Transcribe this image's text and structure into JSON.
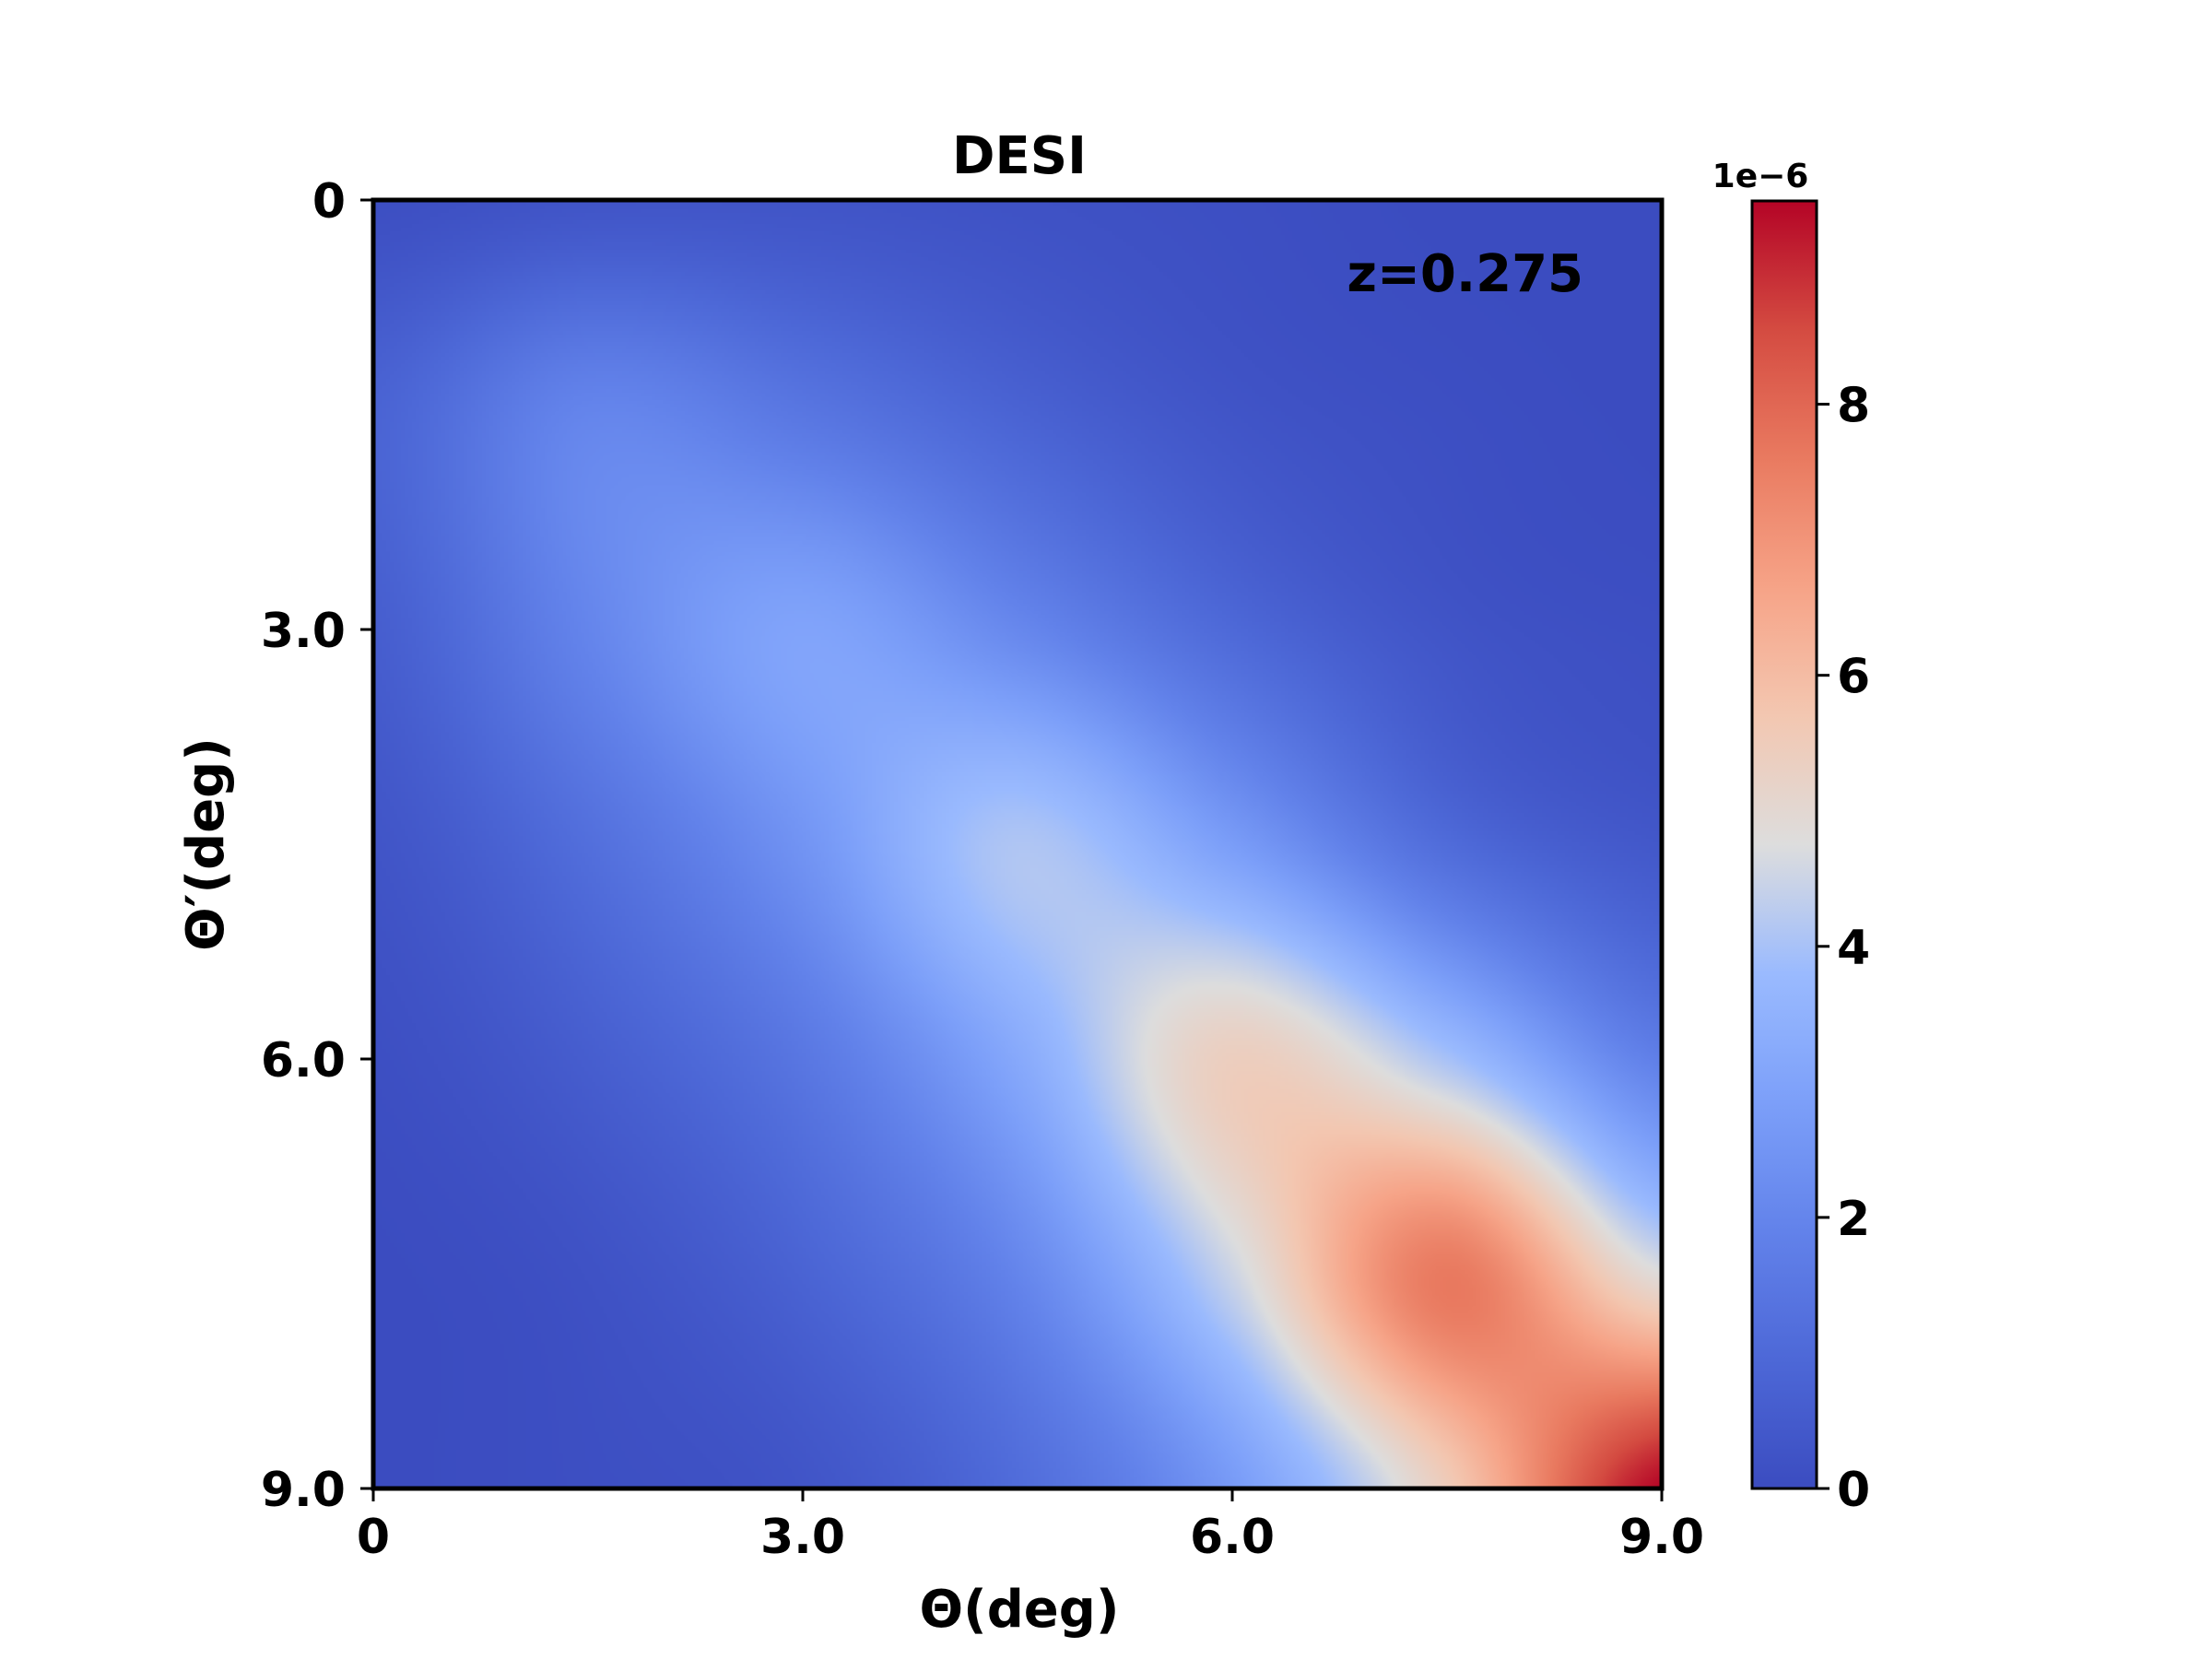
{
  "chart_data": {
    "type": "heatmap",
    "title": "DESI",
    "xlabel": "Θ(deg)",
    "ylabel": "Θ′(deg)",
    "annotation": "z=0.275",
    "x_range": [
      0,
      9.0
    ],
    "y_range": [
      0,
      9.0
    ],
    "y_inverted": true,
    "x_ticks": [
      0,
      3.0,
      6.0,
      9.0
    ],
    "x_tick_labels": [
      "0",
      "3.0",
      "6.0",
      "9.0"
    ],
    "y_ticks": [
      0,
      3.0,
      6.0,
      9.0
    ],
    "y_tick_labels": [
      "0",
      "3.0",
      "6.0",
      "9.0"
    ],
    "colormap": "coolwarm",
    "colorbar": {
      "range": [
        0,
        9.5
      ],
      "ticks": [
        0,
        2,
        4,
        6,
        8
      ],
      "tick_labels": [
        "0",
        "2",
        "4",
        "6",
        "8"
      ],
      "offset_label": "1e−6"
    },
    "sample_grid": {
      "theta": [
        0,
        1.5,
        3.0,
        4.5,
        6.0,
        7.5,
        9.0
      ],
      "theta_prime": [
        0,
        1.5,
        3.0,
        4.5,
        6.0,
        7.5,
        9.0
      ],
      "values": [
        [
          0.1,
          0.3,
          0.3,
          0.2,
          0.1,
          0.0,
          0.0
        ],
        [
          0.8,
          2.0,
          1.5,
          0.8,
          0.3,
          0.1,
          0.0
        ],
        [
          0.6,
          2.0,
          3.0,
          2.1,
          1.0,
          0.3,
          0.1
        ],
        [
          0.3,
          1.2,
          2.5,
          4.1,
          2.8,
          1.1,
          0.4
        ],
        [
          0.1,
          0.6,
          1.5,
          3.2,
          5.4,
          4.0,
          1.8
        ],
        [
          0.0,
          0.2,
          0.8,
          2.0,
          4.5,
          7.6,
          4.8
        ],
        [
          0.0,
          0.1,
          0.3,
          1.1,
          2.7,
          5.5,
          9.5
        ]
      ]
    }
  }
}
